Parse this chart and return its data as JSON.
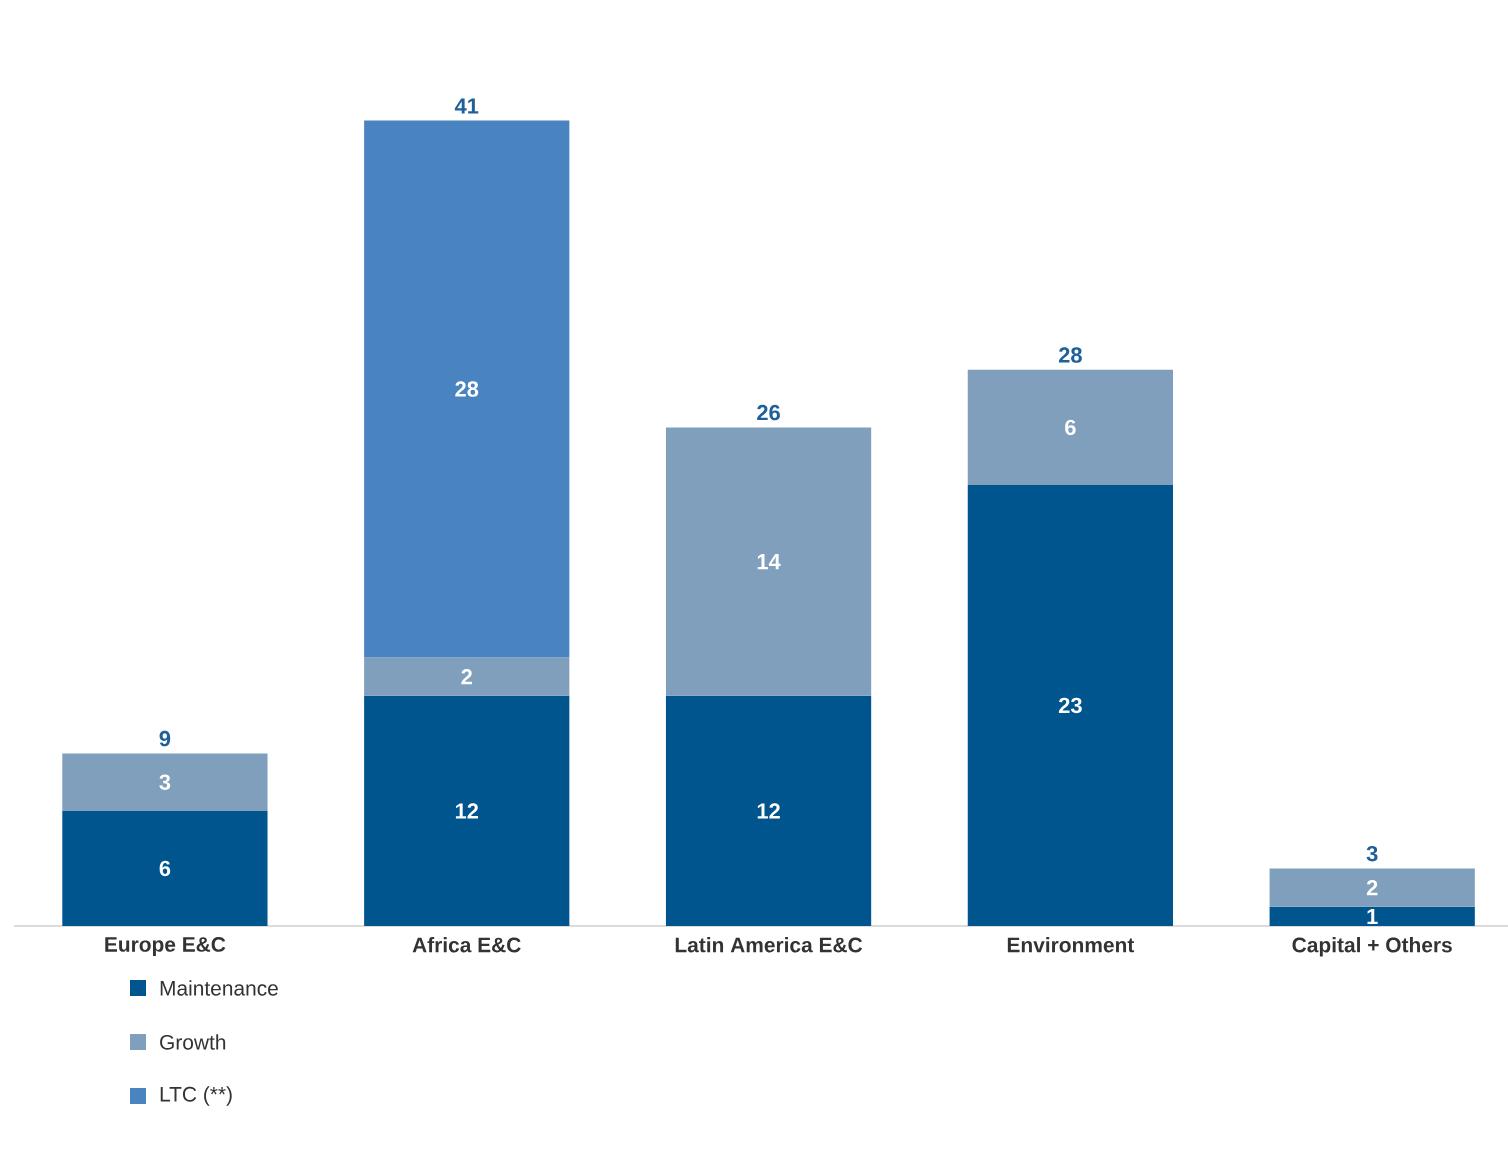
{
  "chart_data": {
    "type": "bar",
    "stacked": true,
    "data_labels": true,
    "legend": "bottom left",
    "categories": [
      "Europe E&C",
      "Africa E&C",
      "Latin America E&C",
      "Environment",
      "Capital + Others"
    ],
    "series": [
      {
        "name": "Maintenance",
        "color": "#00558f",
        "values": [
          6,
          12,
          12,
          23,
          1
        ]
      },
      {
        "name": "Growth",
        "color": "#7f9fbd",
        "values": [
          3,
          2,
          14,
          6,
          2
        ]
      },
      {
        "name": "LTC (**)",
        "color": "#4a84c0",
        "values": [
          null,
          28,
          null,
          null,
          null
        ]
      }
    ],
    "totals": [
      "9",
      "41",
      "26",
      "28",
      "3"
    ]
  }
}
